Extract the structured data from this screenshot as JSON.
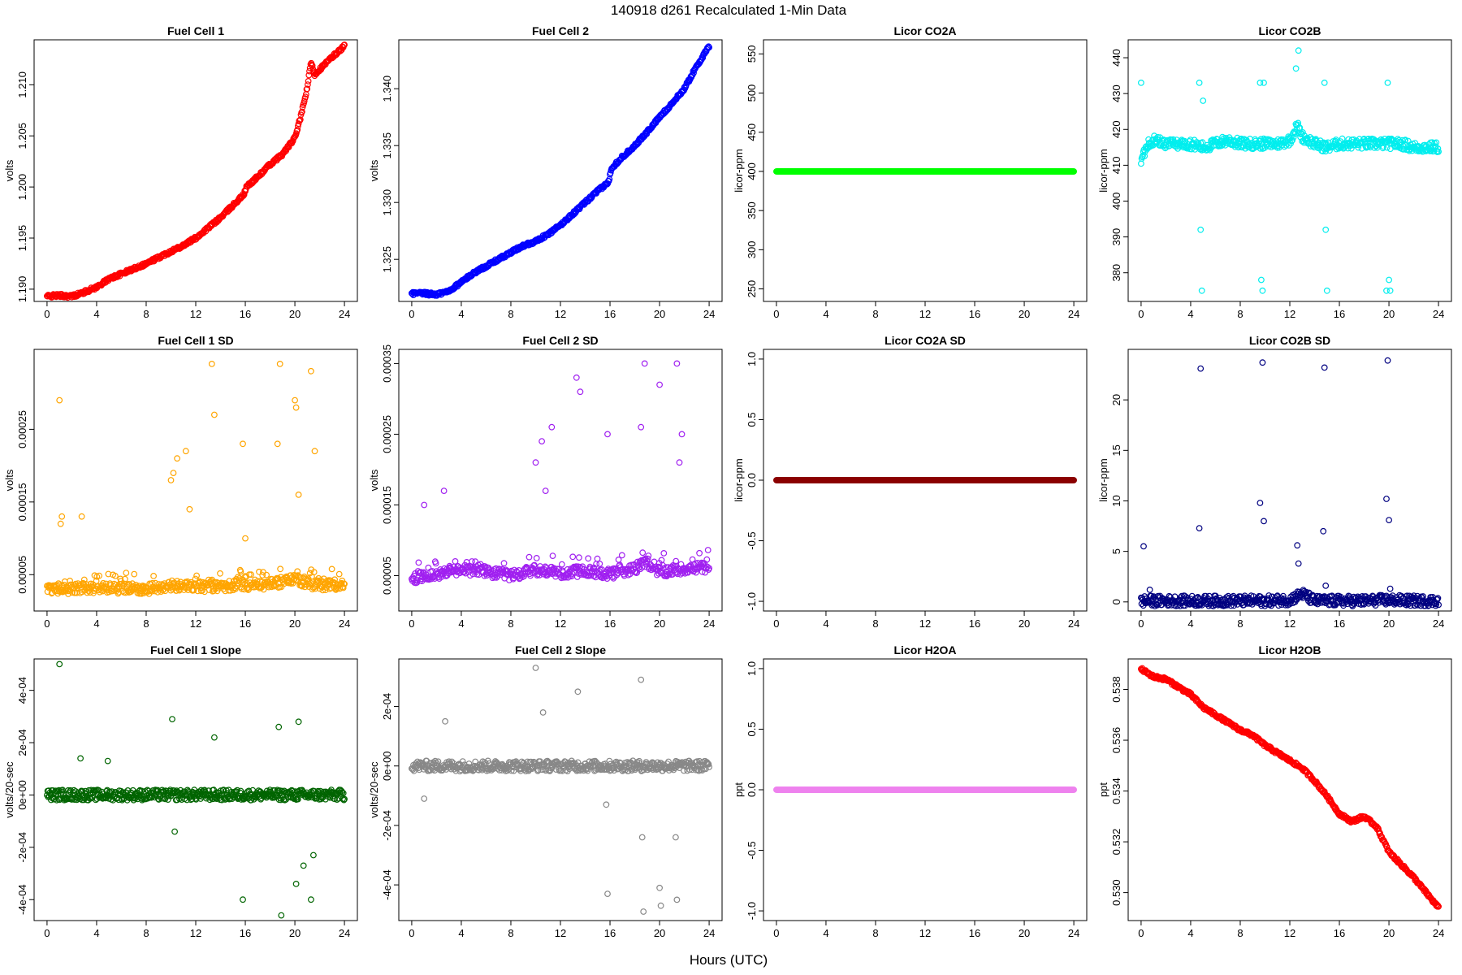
{
  "title": "140918   d261   Recalculated 1-Min Data",
  "xlabel": "Hours (UTC)",
  "chart_data": [
    {
      "type": "scatter",
      "title": "Fuel Cell 1",
      "ylabel": "volts",
      "color": "#ff0000",
      "xlim": [
        0,
        24
      ],
      "xticks": [
        "0",
        "4",
        "8",
        "12",
        "16",
        "20",
        "24"
      ],
      "ylim": [
        1.1888,
        1.2144
      ],
      "yticks": [
        "1.190",
        "1.195",
        "1.200",
        "1.205",
        "1.210"
      ],
      "series": [
        {
          "x": [
            0,
            1,
            2,
            3,
            4,
            5,
            6,
            7,
            8,
            9,
            10,
            11,
            12,
            13,
            14,
            15,
            15.9,
            16.1,
            17,
            18,
            19,
            20,
            20.5,
            21,
            21.3,
            21.6,
            22,
            23,
            24
          ],
          "y": [
            1.1893,
            1.1894,
            1.1893,
            1.1897,
            1.1902,
            1.191,
            1.1915,
            1.192,
            1.1925,
            1.1931,
            1.1937,
            1.1943,
            1.195,
            1.196,
            1.197,
            1.1982,
            1.1993,
            1.2,
            1.201,
            1.2022,
            1.2032,
            1.2048,
            1.207,
            1.2097,
            1.2122,
            1.211,
            1.2115,
            1.2127,
            1.2138
          ]
        }
      ]
    },
    {
      "type": "scatter",
      "title": "Fuel Cell 2",
      "ylabel": "volts",
      "color": "#0000ff",
      "xlim": [
        0,
        24
      ],
      "xticks": [
        "0",
        "4",
        "8",
        "12",
        "16",
        "20",
        "24"
      ],
      "ylim": [
        1.3213,
        1.3443
      ],
      "yticks": [
        "1.325",
        "1.330",
        "1.335",
        "1.340"
      ],
      "series": [
        {
          "x": [
            0,
            1,
            2,
            3,
            4,
            5,
            6,
            7,
            8,
            9,
            10,
            11,
            12,
            13,
            14,
            15,
            15.9,
            16.1,
            17,
            18,
            19,
            20,
            21,
            22,
            23,
            24
          ],
          "y": [
            1.322,
            1.322,
            1.3219,
            1.3222,
            1.323,
            1.3238,
            1.3244,
            1.325,
            1.3256,
            1.3262,
            1.3266,
            1.3272,
            1.328,
            1.329,
            1.33,
            1.331,
            1.3318,
            1.333,
            1.334,
            1.335,
            1.3362,
            1.3375,
            1.3387,
            1.34,
            1.342,
            1.3437
          ]
        }
      ]
    },
    {
      "type": "scatter",
      "title": "Licor CO2A",
      "ylabel": "licor-ppm",
      "color": "#00ff00",
      "xlim": [
        0,
        24
      ],
      "xticks": [
        "0",
        "4",
        "8",
        "12",
        "16",
        "20",
        "24"
      ],
      "ylim": [
        234,
        568
      ],
      "yticks": [
        "250",
        "300",
        "350",
        "400",
        "450",
        "500",
        "550"
      ],
      "series": [
        {
          "x": [
            0,
            24
          ],
          "y": [
            400,
            400
          ]
        }
      ]
    },
    {
      "type": "scatter",
      "title": "Licor CO2B",
      "ylabel": "licor-ppm",
      "color": "#00eeee",
      "xlim": [
        0,
        24
      ],
      "xticks": [
        "0",
        "4",
        "8",
        "12",
        "16",
        "20",
        "24"
      ],
      "ylim": [
        372,
        445
      ],
      "yticks": [
        "380",
        "390",
        "400",
        "410",
        "420",
        "430",
        "440"
      ],
      "series": [
        {
          "x": [
            0,
            0.5,
            1,
            2,
            3,
            4,
            5,
            6,
            7,
            8,
            9,
            10,
            11,
            12,
            12.6,
            13,
            14,
            15,
            16,
            17,
            18,
            19,
            20,
            21,
            22,
            23,
            24
          ],
          "y": [
            411,
            416,
            417,
            416,
            416,
            416,
            415,
            416,
            417,
            416,
            416,
            416,
            416,
            417,
            421,
            418,
            416,
            415,
            416,
            416,
            416,
            416,
            416,
            416,
            415,
            415,
            415
          ]
        },
        {
          "name": "outliers",
          "x": [
            0,
            4.7,
            4.8,
            4.9,
            5,
            9.6,
            9.7,
            9.8,
            9.9,
            12.5,
            12.7,
            14.8,
            14.9,
            15,
            19.8,
            19.9,
            20,
            20.1
          ],
          "y": [
            433,
            433,
            392,
            375,
            428,
            433,
            378,
            375,
            433,
            437,
            442,
            433,
            392,
            375,
            375,
            433,
            378,
            375
          ]
        }
      ]
    },
    {
      "type": "scatter",
      "title": "Fuel Cell 1 SD",
      "ylabel": "volts",
      "color": "#ffa500",
      "xlim": [
        0,
        24
      ],
      "xticks": [
        "0",
        "4",
        "8",
        "12",
        "16",
        "20",
        "24"
      ],
      "ylim": [
        0.0,
        0.00036
      ],
      "yticks": [
        "0.00005",
        "0.00015",
        "0.00025"
      ],
      "series": [
        {
          "x": [
            0,
            2,
            4,
            6,
            8,
            10,
            12,
            14,
            16,
            18,
            19,
            20,
            21,
            22,
            24
          ],
          "y": [
            3e-05,
            3e-05,
            3.2e-05,
            3.1e-05,
            3e-05,
            3.5e-05,
            3.3e-05,
            3.4e-05,
            3.6e-05,
            3.7e-05,
            4e-05,
            4.5e-05,
            3.8e-05,
            3.6e-05,
            3.4e-05
          ]
        },
        {
          "name": "outliers",
          "x": [
            1.0,
            1.1,
            1.2,
            2.8,
            10.0,
            10.2,
            10.5,
            11.2,
            11.5,
            13.3,
            13.5,
            15.8,
            16.0,
            18.6,
            18.8,
            20.0,
            20.1,
            20.3,
            21.3,
            21.6
          ],
          "y": [
            0.00029,
            0.00012,
            0.00013,
            0.00013,
            0.00018,
            0.00019,
            0.00021,
            0.00022,
            0.00014,
            0.00034,
            0.00027,
            0.00023,
            0.0001,
            0.00023,
            0.00034,
            0.00029,
            0.00028,
            0.00016,
            0.00033,
            0.00022
          ]
        }
      ]
    },
    {
      "type": "scatter",
      "title": "Fuel Cell 2 SD",
      "ylabel": "volts",
      "color": "#a020f0",
      "xlim": [
        0,
        24
      ],
      "xticks": [
        "0",
        "4",
        "8",
        "12",
        "16",
        "20",
        "24"
      ],
      "ylim": [
        0.0,
        0.00037
      ],
      "yticks": [
        "0.00005",
        "0.00015",
        "0.00025",
        "0.00035"
      ],
      "series": [
        {
          "x": [
            0,
            2,
            4,
            6,
            8,
            10,
            12,
            14,
            16,
            18,
            19,
            20,
            22,
            24
          ],
          "y": [
            4.5e-05,
            5.2e-05,
            5.8e-05,
            5.5e-05,
            5e-05,
            5.8e-05,
            5.4e-05,
            5.6e-05,
            5.2e-05,
            6e-05,
            6.8e-05,
            5.5e-05,
            6e-05,
            6.2e-05
          ]
        },
        {
          "name": "outliers",
          "x": [
            1.0,
            2.6,
            10.0,
            10.5,
            10.8,
            11.3,
            13.3,
            13.6,
            15.8,
            18.5,
            18.8,
            20.0,
            21.4,
            21.6,
            21.8
          ],
          "y": [
            0.00015,
            0.00017,
            0.00021,
            0.00024,
            0.00017,
            0.00026,
            0.00033,
            0.00031,
            0.00025,
            0.00026,
            0.00035,
            0.00032,
            0.00035,
            0.00021,
            0.00025
          ]
        }
      ]
    },
    {
      "type": "scatter",
      "title": "Licor CO2A SD",
      "ylabel": "licor-ppm",
      "color": "#8b0000",
      "xlim": [
        0,
        24
      ],
      "xticks": [
        "0",
        "4",
        "8",
        "12",
        "16",
        "20",
        "24"
      ],
      "ylim": [
        -1.08,
        1.08
      ],
      "yticks": [
        "-1.0",
        "-0.5",
        "0.0",
        "0.5",
        "1.0"
      ],
      "series": [
        {
          "x": [
            0,
            24
          ],
          "y": [
            0,
            0
          ]
        }
      ]
    },
    {
      "type": "scatter",
      "title": "Licor CO2B SD",
      "ylabel": "licor-ppm",
      "color": "#000080",
      "xlim": [
        0,
        24
      ],
      "xticks": [
        "0",
        "4",
        "8",
        "12",
        "16",
        "20",
        "24"
      ],
      "ylim": [
        -0.9,
        25
      ],
      "yticks": [
        "0",
        "5",
        "10",
        "15",
        "20"
      ],
      "series": [
        {
          "x": [
            0,
            2,
            4,
            6,
            8,
            10,
            12,
            13,
            14,
            16,
            18,
            20,
            22,
            24
          ],
          "y": [
            0.1,
            0.1,
            0.1,
            0.1,
            0.1,
            0.1,
            0.2,
            0.8,
            0.1,
            0.1,
            0.1,
            0.2,
            0.1,
            0.1
          ]
        },
        {
          "name": "outliers",
          "x": [
            0.2,
            0.7,
            4.7,
            4.8,
            9.6,
            9.8,
            9.9,
            12.6,
            12.7,
            14.7,
            14.8,
            14.9,
            19.8,
            19.9,
            20.0,
            20.1
          ],
          "y": [
            5.5,
            1.2,
            7.3,
            23.1,
            9.8,
            23.7,
            8.0,
            5.6,
            3.8,
            7.0,
            23.2,
            1.6,
            10.2,
            23.9,
            8.1,
            1.3
          ]
        }
      ]
    },
    {
      "type": "scatter",
      "title": "Fuel Cell 1 Slope",
      "ylabel": "volts/20-sec",
      "color": "#006400",
      "xlim": [
        0,
        24
      ],
      "xticks": [
        "0",
        "4",
        "8",
        "12",
        "16",
        "20",
        "24"
      ],
      "ylim": [
        -0.00048,
        0.00052
      ],
      "yticks": [
        "-4e-04",
        "-2e-04",
        "0e+00",
        "2e-04",
        "4e-04"
      ],
      "series": [
        {
          "x": [
            0,
            2,
            4,
            6,
            8,
            10,
            12,
            14,
            16,
            18,
            20,
            22,
            24
          ],
          "y": [
            0,
            0,
            0,
            0,
            0,
            0,
            0,
            0,
            0,
            0,
            0,
            0,
            0
          ]
        },
        {
          "name": "outliers",
          "x": [
            1.0,
            2.7,
            4.9,
            10.1,
            10.3,
            13.5,
            15.8,
            18.7,
            18.9,
            20.1,
            20.3,
            20.7,
            21.3,
            21.5
          ],
          "y": [
            0.0005,
            0.00014,
            0.00013,
            0.00029,
            -0.00014,
            0.00022,
            -0.0004,
            0.00026,
            -0.00046,
            -0.00034,
            0.00028,
            -0.00027,
            -0.0004,
            -0.00023
          ]
        }
      ]
    },
    {
      "type": "scatter",
      "title": "Fuel Cell 2 Slope",
      "ylabel": "volts/20-sec",
      "color": "#888888",
      "xlim": [
        0,
        24
      ],
      "xticks": [
        "0",
        "4",
        "8",
        "12",
        "16",
        "20",
        "24"
      ],
      "ylim": [
        -0.00052,
        0.00036
      ],
      "yticks": [
        "-4e-04",
        "-2e-04",
        "0e+00",
        "2e-04"
      ],
      "series": [
        {
          "x": [
            0,
            2,
            4,
            6,
            8,
            10,
            12,
            14,
            16,
            18,
            20,
            22,
            24
          ],
          "y": [
            0,
            0,
            0,
            0,
            0,
            0,
            0,
            0,
            0,
            0,
            0,
            0,
            0
          ]
        },
        {
          "name": "outliers",
          "x": [
            1.0,
            2.7,
            10.0,
            10.6,
            13.4,
            15.7,
            15.8,
            18.5,
            18.6,
            18.7,
            20.0,
            20.1,
            21.3,
            21.4
          ],
          "y": [
            -0.00011,
            0.00015,
            0.00033,
            0.00018,
            0.00025,
            -0.00013,
            -0.00043,
            0.00029,
            -0.00024,
            -0.00049,
            -0.00041,
            -0.00047,
            -0.00024,
            -0.00045
          ]
        }
      ]
    },
    {
      "type": "scatter",
      "title": "Licor H2OA",
      "ylabel": "ppt",
      "color": "#ee82ee",
      "xlim": [
        0,
        24
      ],
      "xticks": [
        "0",
        "4",
        "8",
        "12",
        "16",
        "20",
        "24"
      ],
      "ylim": [
        -1.08,
        1.08
      ],
      "yticks": [
        "-1.0",
        "-0.5",
        "0.0",
        "0.5",
        "1.0"
      ],
      "series": [
        {
          "x": [
            0,
            24
          ],
          "y": [
            0,
            0
          ]
        }
      ]
    },
    {
      "type": "scatter",
      "title": "Licor H2OB",
      "ylabel": "ppt",
      "color": "#ff0000",
      "xlim": [
        0,
        24
      ],
      "xticks": [
        "0",
        "4",
        "8",
        "12",
        "16",
        "20",
        "24"
      ],
      "ylim": [
        0.5289,
        0.5392
      ],
      "yticks": [
        "0.530",
        "0.532",
        "0.534",
        "0.536",
        "0.538"
      ],
      "series": [
        {
          "x": [
            0,
            1,
            2,
            3,
            4,
            5,
            6,
            7,
            8,
            9,
            10,
            11,
            12,
            13,
            14,
            15,
            16,
            17,
            18,
            19,
            20,
            21,
            22,
            23,
            24
          ],
          "y": [
            0.5388,
            0.5385,
            0.5384,
            0.5381,
            0.5378,
            0.5373,
            0.537,
            0.5367,
            0.5364,
            0.5362,
            0.5358,
            0.5355,
            0.5352,
            0.5349,
            0.5344,
            0.5338,
            0.5331,
            0.5328,
            0.533,
            0.5326,
            0.5316,
            0.5311,
            0.5306,
            0.53,
            0.5294
          ]
        }
      ]
    }
  ]
}
